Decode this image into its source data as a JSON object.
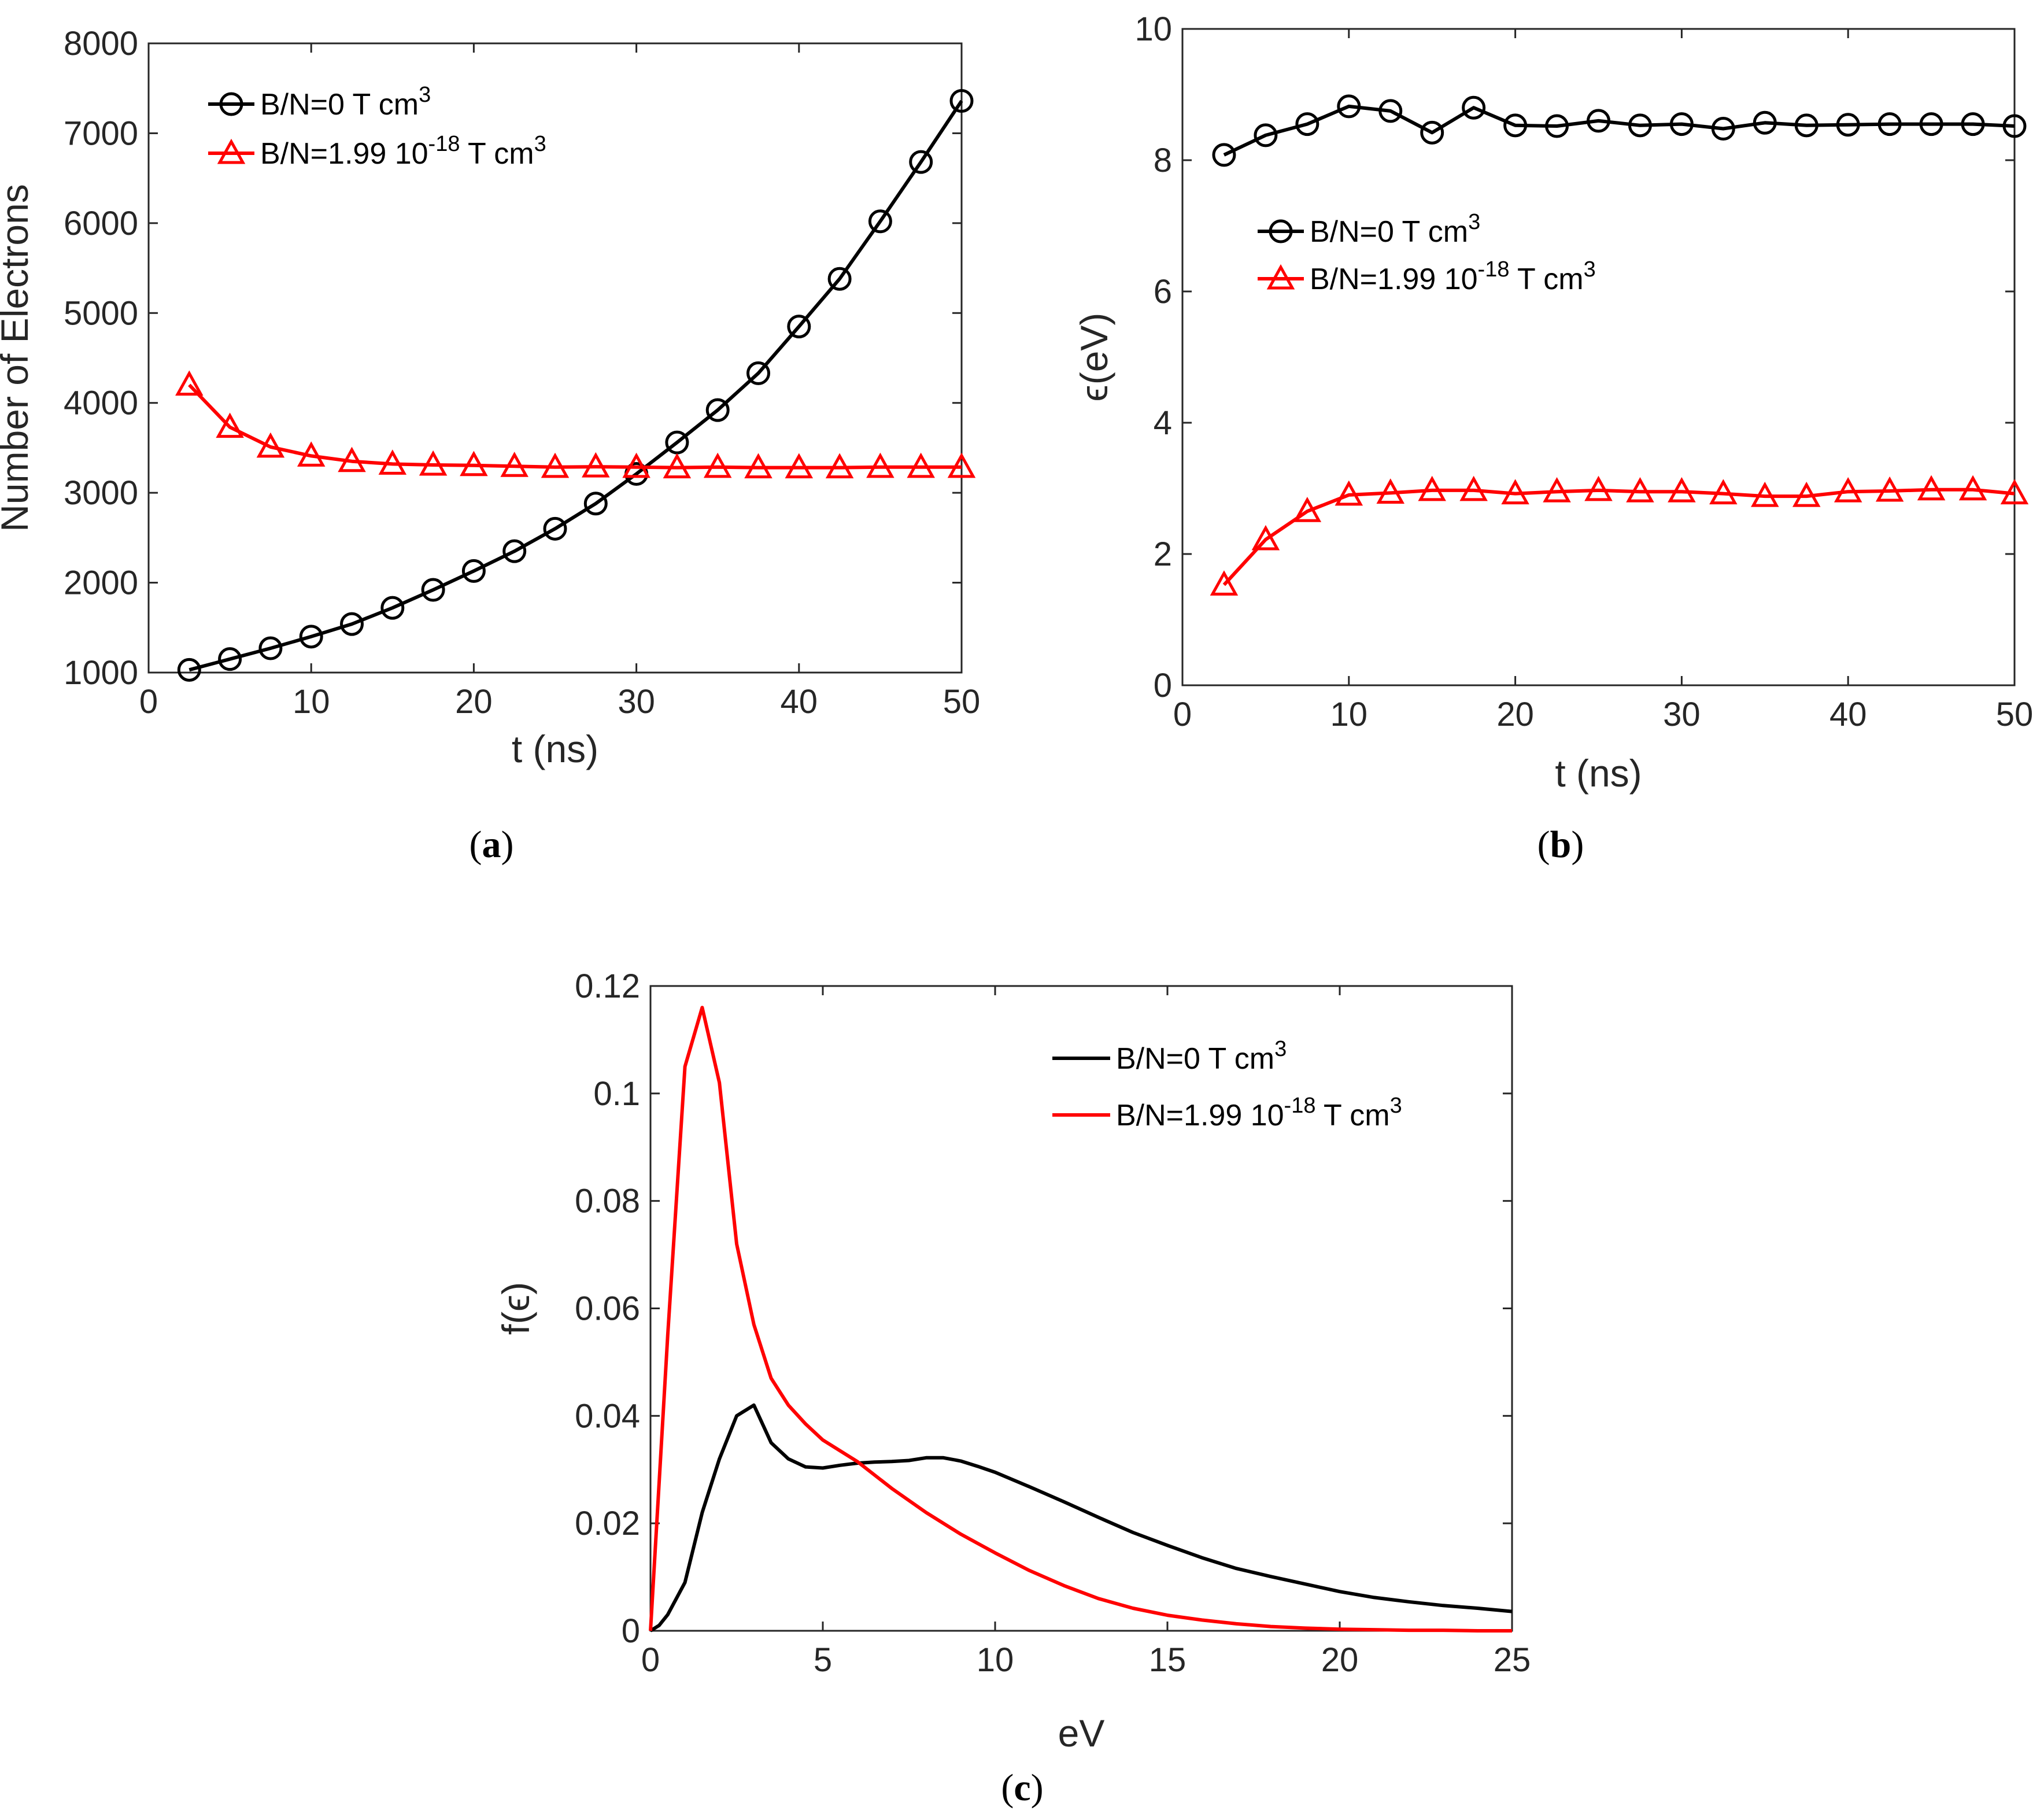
{
  "chart_data": [
    {
      "panel": "a",
      "type": "line",
      "xlabel": "t (ns)",
      "ylabel": "Number of Electrons",
      "xlim": [
        0,
        50
      ],
      "ylim": [
        1000,
        8000
      ],
      "xticks": [
        0,
        10,
        20,
        30,
        40,
        50
      ],
      "yticks": [
        1000,
        2000,
        3000,
        4000,
        5000,
        6000,
        7000,
        8000
      ],
      "grid": false,
      "legend_position": "top-left",
      "series": [
        {
          "name": "B/N=0 T cm3",
          "label_base": "B/N=0 T cm",
          "label_sup": "3",
          "color": "#000000",
          "marker": "circle",
          "x": [
            2.5,
            5,
            7.5,
            10,
            12.5,
            15,
            17.5,
            20,
            22.5,
            25,
            27.5,
            30,
            32.5,
            35,
            37.5,
            40,
            42.5,
            45,
            47.5,
            50
          ],
          "y": [
            1030,
            1150,
            1270,
            1400,
            1540,
            1720,
            1920,
            2130,
            2350,
            2600,
            2880,
            3210,
            3560,
            3920,
            4330,
            4850,
            5380,
            6020,
            6680,
            7360
          ]
        },
        {
          "name": "B/N=1.99 10-18 T cm3",
          "label_base": "B/N=1.99 10",
          "label_exp": "-18",
          "label_unit": " T cm",
          "label_sup": "3",
          "color": "#ff0000",
          "marker": "triangle",
          "x": [
            2.5,
            5,
            7.5,
            10,
            12.5,
            15,
            17.5,
            20,
            22.5,
            25,
            27.5,
            30,
            32.5,
            35,
            37.5,
            40,
            42.5,
            45,
            47.5,
            50
          ],
          "y": [
            4200,
            3730,
            3510,
            3410,
            3350,
            3320,
            3310,
            3305,
            3295,
            3285,
            3290,
            3285,
            3280,
            3285,
            3280,
            3280,
            3280,
            3285,
            3285,
            3285
          ]
        }
      ]
    },
    {
      "panel": "b",
      "type": "line",
      "xlabel": "t (ns)",
      "ylabel": "ϵ(eV)",
      "xlim": [
        0,
        50
      ],
      "ylim": [
        0,
        10
      ],
      "xticks": [
        0,
        10,
        20,
        30,
        40,
        50
      ],
      "yticks": [
        0,
        2,
        4,
        6,
        8,
        10
      ],
      "grid": false,
      "legend_position": "center-left",
      "series": [
        {
          "name": "B/N=0 T cm3",
          "label_base": "B/N=0 T cm",
          "label_sup": "3",
          "color": "#000000",
          "marker": "circle",
          "x": [
            2.5,
            5,
            7.5,
            10,
            12.5,
            15,
            17.5,
            20,
            22.5,
            25,
            27.5,
            30,
            32.5,
            35,
            37.5,
            40,
            42.5,
            45,
            47.5,
            50
          ],
          "y": [
            8.08,
            8.38,
            8.55,
            8.82,
            8.75,
            8.42,
            8.8,
            8.53,
            8.52,
            8.6,
            8.53,
            8.55,
            8.48,
            8.57,
            8.53,
            8.54,
            8.55,
            8.55,
            8.55,
            8.52
          ]
        },
        {
          "name": "B/N=1.99 10-18 T cm3",
          "label_base": "B/N=1.99 10",
          "label_exp": "-18",
          "label_unit": " T cm",
          "label_sup": "3",
          "color": "#ff0000",
          "marker": "triangle",
          "x": [
            2.5,
            5,
            7.5,
            10,
            12.5,
            15,
            17.5,
            20,
            22.5,
            25,
            27.5,
            30,
            32.5,
            35,
            37.5,
            40,
            42.5,
            45,
            47.5,
            50
          ],
          "y": [
            1.53,
            2.22,
            2.65,
            2.9,
            2.93,
            2.97,
            2.97,
            2.92,
            2.95,
            2.97,
            2.95,
            2.95,
            2.92,
            2.88,
            2.88,
            2.95,
            2.96,
            2.98,
            2.98,
            2.92
          ]
        }
      ]
    },
    {
      "panel": "c",
      "type": "line",
      "xlabel": "eV",
      "ylabel": "f(ϵ)",
      "xlim": [
        0,
        25
      ],
      "ylim": [
        0,
        0.12
      ],
      "xticks": [
        0,
        5,
        10,
        15,
        20,
        25
      ],
      "yticks": [
        0,
        0.02,
        0.04,
        0.06,
        0.08,
        0.1,
        0.12
      ],
      "grid": false,
      "legend_position": "top-right",
      "series": [
        {
          "name": "B/N=0 T cm3",
          "label_base": "B/N=0 T cm",
          "label_sup": "3",
          "color": "#000000",
          "marker": "none",
          "x": [
            0,
            0.25,
            0.5,
            1,
            1.5,
            2,
            2.5,
            3,
            3.5,
            4,
            4.5,
            5,
            5.5,
            6,
            6.5,
            7,
            7.5,
            8,
            8.5,
            9,
            9.5,
            10,
            11,
            12,
            13,
            14,
            15,
            16,
            17,
            18,
            19,
            20,
            21,
            22,
            23,
            24,
            25
          ],
          "y": [
            0,
            0.001,
            0.003,
            0.009,
            0.022,
            0.032,
            0.04,
            0.042,
            0.035,
            0.032,
            0.0305,
            0.0303,
            0.0308,
            0.0312,
            0.0314,
            0.0315,
            0.0317,
            0.0322,
            0.0322,
            0.0316,
            0.0306,
            0.0295,
            0.0268,
            0.024,
            0.0211,
            0.0183,
            0.0159,
            0.0136,
            0.0116,
            0.0101,
            0.0087,
            0.0073,
            0.0062,
            0.0054,
            0.0047,
            0.0042,
            0.0036
          ]
        },
        {
          "name": "B/N=1.99 10-18 T cm3",
          "label_base": "B/N=1.99 10",
          "label_exp": "-18",
          "label_unit": " T cm",
          "label_sup": "3",
          "color": "#ff0000",
          "marker": "none",
          "x": [
            0,
            0.5,
            1,
            1.5,
            2,
            2.5,
            3,
            3.5,
            4,
            4.5,
            5,
            6,
            7,
            8,
            9,
            10,
            11,
            12,
            13,
            14,
            15,
            16,
            17,
            18,
            19,
            20,
            21,
            22,
            23,
            24,
            25
          ],
          "y": [
            0,
            0.055,
            0.105,
            0.116,
            0.102,
            0.072,
            0.057,
            0.047,
            0.042,
            0.0385,
            0.0355,
            0.0315,
            0.0265,
            0.022,
            0.018,
            0.0145,
            0.0112,
            0.0084,
            0.006,
            0.0042,
            0.0029,
            0.002,
            0.0013,
            0.0008,
            0.0005,
            0.0003,
            0.0002,
            0.0001,
            0.0001,
            0.0,
            0.0
          ]
        }
      ]
    }
  ],
  "panel_labels": [
    "a",
    "b",
    "c"
  ]
}
